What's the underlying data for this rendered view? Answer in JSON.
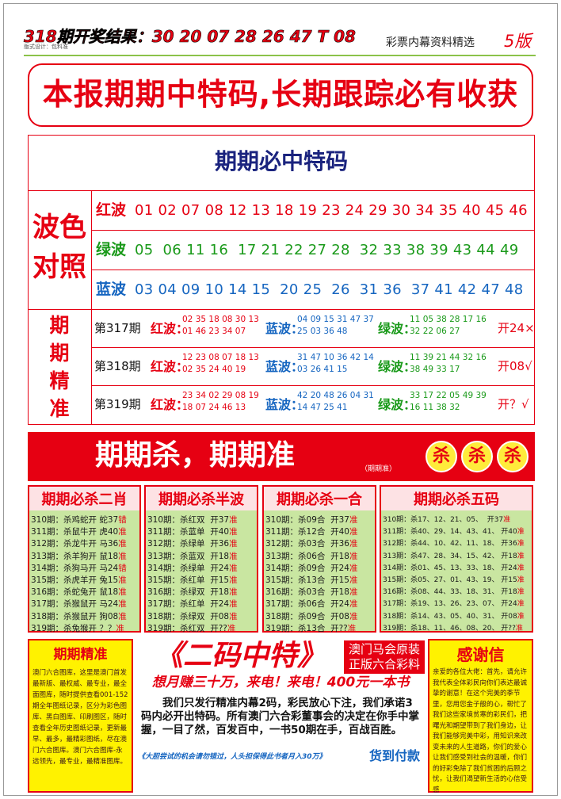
{
  "header": {
    "result": "318期开奖结果：30 20 07 28 26 47 T 08",
    "designer": "版式设计：包料准",
    "section": "彩票内幕资料精选",
    "page": "5版"
  },
  "banner": "本报期期中特码,长期跟踪必有收获",
  "table": {
    "title": "期期必中特码",
    "color_label": [
      "波色",
      "对照"
    ],
    "waves": [
      {
        "name": "红波",
        "numbers": "01 02 07 08 12 13 18 19 23 24 29 30 34 35 40 45 46"
      },
      {
        "name": "绿波",
        "numbers": "05  06 11 16  17 21 22 27 28  32 33 38 39 43 44 49"
      },
      {
        "name": "蓝波",
        "numbers": "03 04 09 10 14 15  20 25  26  31 36  37 41 42 47 48"
      }
    ],
    "precise_label": [
      "期",
      "期",
      "精",
      "准"
    ],
    "periods": [
      {
        "period": "第317期",
        "groups": [
          {
            "name": "红波：",
            "lines": [
              "02 35 18 08 30 13",
              "01 46 23 34 07"
            ]
          },
          {
            "name": "蓝波：",
            "lines": [
              "04 09 15 31 47 37",
              "25 03 36 48"
            ]
          },
          {
            "name": "绿波：",
            "lines": [
              "11 05 38 28 17 16",
              "32 22 06 27"
            ]
          }
        ],
        "result": "开24×"
      },
      {
        "period": "第318期",
        "groups": [
          {
            "name": "红波：",
            "lines": [
              "12 23 08 07 18 13",
              "02 35 24 40 19"
            ]
          },
          {
            "name": "蓝波：",
            "lines": [
              "31 47 10 36 42 14",
              "03 26 41 15"
            ]
          },
          {
            "name": "绿波：",
            "lines": [
              "11 39 21 44 32 16",
              "38 49 33 17"
            ]
          }
        ],
        "result": "开08√"
      },
      {
        "period": "第319期",
        "groups": [
          {
            "name": "红波：",
            "lines": [
              "23 34 02 29 08 19",
              "18 07 24 46 13"
            ]
          },
          {
            "name": "蓝波：",
            "lines": [
              "42 20 48 26 04 31",
              "14 47 25 41"
            ]
          },
          {
            "name": "绿波：",
            "lines": [
              "33 17 22 05 49 39",
              "16 11 38 32"
            ]
          }
        ],
        "result": "开？√"
      }
    ]
  },
  "kill_banner": {
    "title": "期期杀，期期准",
    "note": "（期期准）",
    "badges": [
      "杀",
      "杀",
      "杀"
    ]
  },
  "columns": [
    {
      "title": "期期必杀二肖",
      "rows": [
        [
          "310期：杀鸡蛇开 蛇37",
          "错"
        ],
        [
          "311期：杀鼠牛开 虎40",
          "准"
        ],
        [
          "312期：杀龙牛开 马36",
          "准"
        ],
        [
          "313期：杀羊狗开 鼠18",
          "准"
        ],
        [
          "314期：杀狗马开 马24",
          "错"
        ],
        [
          "315期：杀虎羊开 兔15",
          "准"
        ],
        [
          "316期：杀蛇兔开 鼠18",
          "准"
        ],
        [
          "317期：杀猴鼠开 马24",
          "准"
        ],
        [
          "318期：杀猴鼠开 狗08",
          "准"
        ],
        [
          "319期：杀兔猴开 ？？",
          "准"
        ]
      ]
    },
    {
      "title": "期期必杀半波",
      "rows": [
        [
          "310期：杀红双  开37",
          "准"
        ],
        [
          "311期：杀蓝单  开40",
          "准"
        ],
        [
          "312期：杀绿单  开36",
          "准"
        ],
        [
          "313期：杀蓝双  开18",
          "准"
        ],
        [
          "314期：杀绿单  开24",
          "准"
        ],
        [
          "315期：杀红单  开15",
          "准"
        ],
        [
          "316期：杀绿双  开18",
          "准"
        ],
        [
          "317期：杀红单  开24",
          "准"
        ],
        [
          "318期：杀绿双  开08",
          "准"
        ],
        [
          "319期：杀红双  开??",
          "准"
        ]
      ]
    },
    {
      "title": "期期必杀一合",
      "rows": [
        [
          "310期：杀09合  开37",
          "准"
        ],
        [
          "311期：杀12合  开40",
          "准"
        ],
        [
          "312期：杀03合  开36",
          "准"
        ],
        [
          "313期：杀06合  开18",
          "准"
        ],
        [
          "314期：杀09合  开24",
          "准"
        ],
        [
          "315期：杀13合  开15",
          "准"
        ],
        [
          "316期：杀03合  开18",
          "准"
        ],
        [
          "317期：杀06合  开24",
          "准"
        ],
        [
          "318期：杀09合  开08",
          "准"
        ],
        [
          "319期：杀13合  开??",
          "准"
        ]
      ]
    },
    {
      "title": "期期必杀五码",
      "rows": [
        [
          "310期：杀17、12、21、05、  开37",
          "准"
        ],
        [
          "311期：杀40、29、14、43、41、 开40",
          "准"
        ],
        [
          "312期：杀44、10、42、11、18、 开36",
          "准"
        ],
        [
          "313期：杀47、28、34、15、42、 开18",
          "准"
        ],
        [
          "314期：杀01、45、13、33、18、 开24",
          "准"
        ],
        [
          "315期：杀05、27、01、43、19、 开15",
          "准"
        ],
        [
          "316期：杀08、44、33、18、31、 开18",
          "准"
        ],
        [
          "317期：杀19、13、26、23、07、 开24",
          "准"
        ],
        [
          "318期：杀14、43、05、40、31、 开08",
          "准"
        ],
        [
          "319期：杀18、11、46、08、20、 开??",
          "准"
        ]
      ]
    }
  ],
  "footer": {
    "left": {
      "title": "期期精准",
      "text": "澳门六合图库，这里是澳门首发最新版、最权威、最专业，最全面图库，随时提供查看001-152期全年图纸记录，区分为彩色图库、黑白图库、印刷图区，随时查看全年历史图纸记录，更新最早、最多，最精彩图纸，尽在澳门六合图库。澳门六合图库-永远领先，最专业，最精准图库。"
    },
    "middle": {
      "title": "《二码中特》",
      "tags": [
        "澳门马会原装",
        "正版六合彩料"
      ],
      "slogan": "想月赚三十万，来电！来电！400元一本书",
      "text": "我们只发行精准内幕2码，彩民放心下注，我们承诺3码内必开出特码。所有澳门六合彩董事会的决定在你手中掌握，一目了然，百发百中，一书50期在手，百战百胜。",
      "note": "《大胆尝试的机会请勿错过，人头担保得此书者月入30万》",
      "payment": "货到付款"
    },
    "right": {
      "title": "感谢信",
      "text": "亲爱的各位大佬：首先，请允许我代表全体彩民向你们表达最诚挚的谢意！在这个完美的季节里，您用您金子般的心，帮忙了我们这些家境贫寒的彩民们，把曙光和期望带到了我们身边，让我们能够完美中彩，用知识来改变未来的人生道路，你们的爱心让我们感受到社会的温暖，你们的好彩免除了我们贫困的后顾之忧，让我们渴望新生活的心信受感"
    }
  }
}
